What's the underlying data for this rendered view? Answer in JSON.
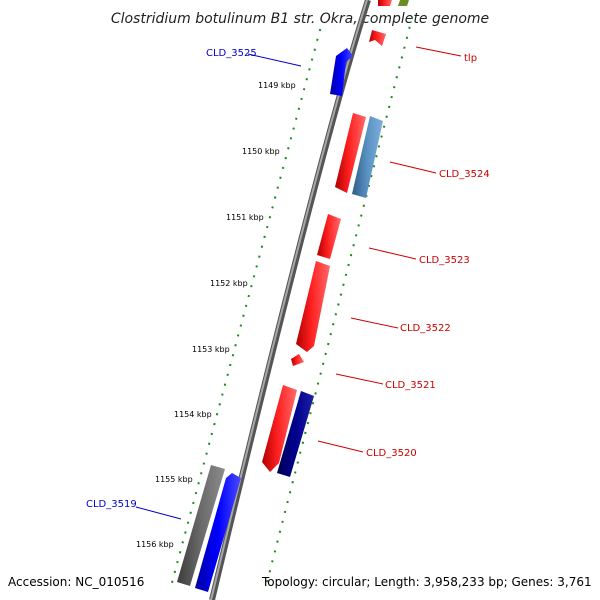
{
  "title": "Clostridium botulinum B1 str. Okra, complete genome",
  "footer": {
    "accession": "Accession: NC_010516",
    "topology": "Topology: circular; Length: 3,958,233 bp; Genes: 3,761"
  },
  "kbp_ticks": [
    "1149 kbp",
    "1150 kbp",
    "1151 kbp",
    "1152 kbp",
    "1153 kbp",
    "1154 kbp",
    "1155 kbp",
    "1156 kbp"
  ],
  "gene_labels": [
    {
      "text": "CLD_3525",
      "color": "#0000cc"
    },
    {
      "text": "tlp",
      "color": "#cc0000"
    },
    {
      "text": "CLD_3524",
      "color": "#cc0000"
    },
    {
      "text": "CLD_3523",
      "color": "#cc0000"
    },
    {
      "text": "CLD_3522",
      "color": "#cc0000"
    },
    {
      "text": "CLD_3521",
      "color": "#cc0000"
    },
    {
      "text": "CLD_3520",
      "color": "#cc0000"
    },
    {
      "text": "CLD_3519",
      "color": "#0000cc"
    }
  ],
  "colors": {
    "backbone": "#8a8a8a",
    "dots": "#1a8a1a",
    "red_feature": "#ff1a1a",
    "blue_feature": "#0000ff",
    "navy_feature": "#000080",
    "steel_feature": "#4682b4",
    "gray_feature": "#666666",
    "olive_feature": "#6b8e23"
  }
}
